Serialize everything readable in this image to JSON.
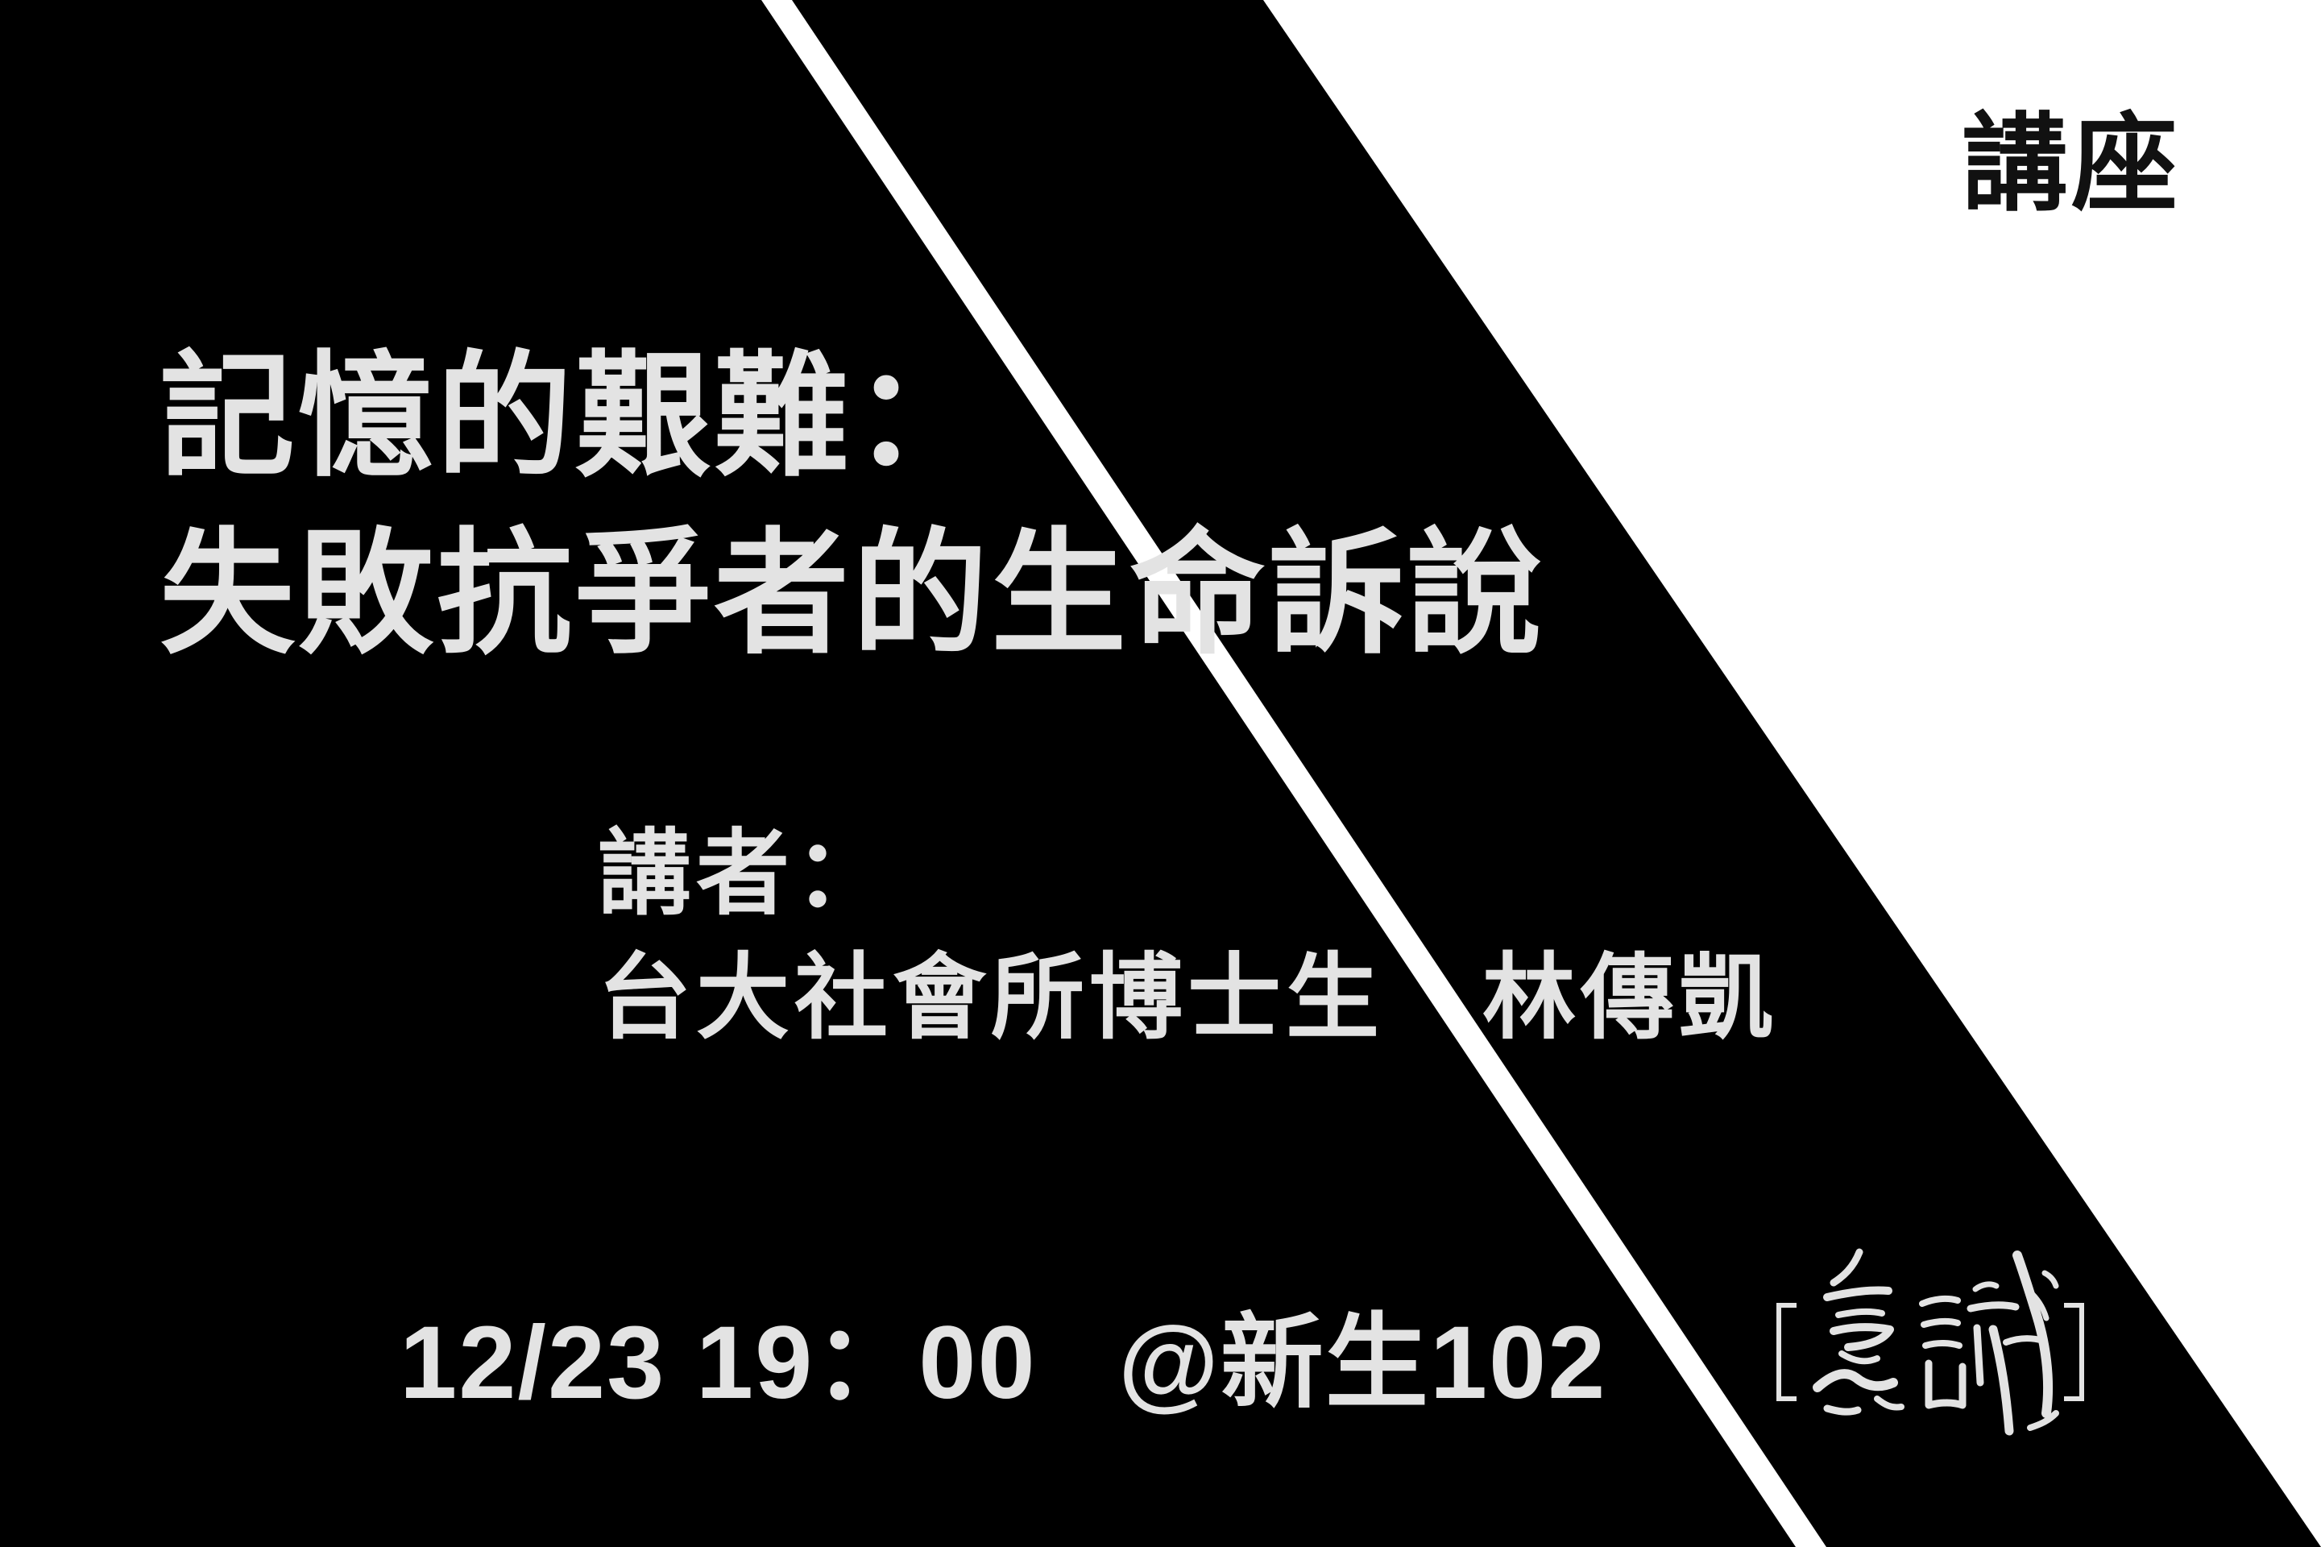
{
  "poster": {
    "category": "講座",
    "title_line1": "記憶的艱難：",
    "title_line2": "失敗抗爭者的生命訴說",
    "speaker_label": "講者：",
    "speaker_name": "台大社會所博士生　林傳凱",
    "datetime": "12/23 19：00",
    "venue": "@新生102",
    "logo_text": "意識",
    "logo_icon": "calligraphy-seal-icon"
  },
  "colors": {
    "background": "#000000",
    "panel": "#ffffff",
    "text_light": "#e3e3e3",
    "text_dark": "#111111"
  }
}
